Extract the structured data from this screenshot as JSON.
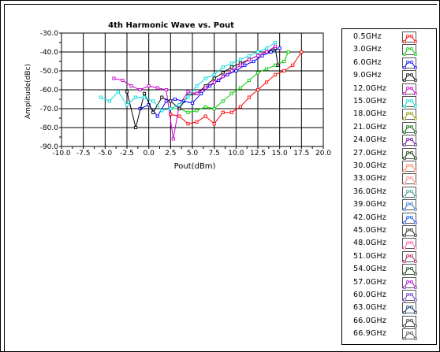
{
  "chart_data": {
    "type": "line",
    "title": "4th Harmonic Wave vs. Pout",
    "xlabel": "Pout(dBm)",
    "ylabel": "Amplitude(dBc)",
    "xlim": [
      -10,
      20
    ],
    "ylim": [
      -90,
      -30
    ],
    "xticks": [
      "-10.0",
      "-7.5",
      "-5.0",
      "-2.5",
      "0.0",
      "2.5",
      "5.0",
      "7.5",
      "10.0",
      "12.5",
      "15.0",
      "17.5",
      "20.0"
    ],
    "yticks": [
      "-30.0",
      "-40.0",
      "-50.0",
      "-60.0",
      "-70.0",
      "-80.0",
      "-90.0"
    ],
    "grid": true,
    "legend_position": "right",
    "series": [
      {
        "name": "0.5GHz",
        "color": "#ff0000",
        "x": [
          2.5,
          3.5,
          4.5,
          5.5,
          6.5,
          7.5,
          8.5,
          9.5,
          10.5,
          11.5,
          12.5,
          13.5,
          14.5,
          15.5,
          16.5,
          17.5
        ],
        "y": [
          -73,
          -74,
          -78,
          -77,
          -74,
          -78,
          -72,
          -72,
          -69,
          -64,
          -60,
          -56,
          -52,
          -50,
          -47,
          -40
        ]
      },
      {
        "name": "3.0GHz",
        "color": "#00cc00",
        "x": [
          2.5,
          3.5,
          4.5,
          5.5,
          6.5,
          7.5,
          8.5,
          9.5,
          10.5,
          11.5,
          12.5,
          13.5,
          14.5,
          15.5,
          16.0
        ],
        "y": [
          -70,
          -70,
          -72,
          -71,
          -69,
          -70,
          -66,
          -62,
          -59,
          -55,
          -51,
          -49,
          -47,
          -45,
          -40
        ]
      },
      {
        "name": "6.0GHz",
        "color": "#0000ff",
        "x": [
          -1.0,
          0.0,
          1.0,
          2.0,
          3.0,
          4.0,
          5.0,
          6.0,
          7.0,
          8.0,
          9.0,
          10.0,
          11.0,
          12.0,
          13.0,
          14.0,
          15.0
        ],
        "y": [
          -70,
          -68,
          -74,
          -66,
          -65,
          -66,
          -67,
          -62,
          -58,
          -55,
          -52,
          -50,
          -47,
          -45,
          -42,
          -40,
          -38
        ]
      },
      {
        "name": "9.0GHz",
        "color": "#000000",
        "x": [
          -2.5,
          -1.5,
          -0.5,
          0.5,
          1.5,
          2.5,
          3.5,
          4.5,
          5.5,
          6.5,
          7.5,
          8.5,
          9.5,
          10.5,
          11.5,
          12.5,
          13.5,
          14.5,
          14.8
        ],
        "y": [
          -61,
          -80,
          -62,
          -72,
          -64,
          -66,
          -70,
          -63,
          -62,
          -58,
          -54,
          -51,
          -48,
          -46,
          -44,
          -42,
          -40,
          -38,
          -47
        ]
      },
      {
        "name": "12.0GHz",
        "color": "#cc00cc",
        "x": [
          -4.0,
          -3.0,
          -2.0,
          -1.0,
          0.0,
          1.0,
          2.0,
          2.8,
          3.5,
          4.5,
          5.5,
          6.5,
          7.5,
          8.5,
          9.5,
          10.5,
          11.5,
          12.5,
          13.5,
          14.5
        ],
        "y": [
          -54,
          -55,
          -58,
          -60,
          -58,
          -59,
          -60,
          -86,
          -68,
          -61,
          -62,
          -59,
          -56,
          -53,
          -50,
          -47,
          -44,
          -42,
          -40,
          -37
        ]
      },
      {
        "name": "15.0GHz",
        "color": "#00dddd",
        "x": [
          -5.5,
          -4.5,
          -3.5,
          -2.5,
          -1.5,
          -0.5,
          0.5,
          1.5,
          2.5,
          3.5,
          4.5,
          5.5,
          6.5,
          7.5,
          8.5,
          9.5,
          10.5,
          11.5,
          12.5,
          13.5,
          14.5
        ],
        "y": [
          -64,
          -66,
          -61,
          -68,
          -64,
          -64,
          -66,
          -71,
          -70,
          -68,
          -64,
          -58,
          -54,
          -52,
          -48,
          -46,
          -44,
          -42,
          -40,
          -38,
          -35
        ]
      }
    ]
  },
  "legend": {
    "items": [
      {
        "label": "0.5GHz",
        "color": "#ff0000"
      },
      {
        "label": "3.0GHz",
        "color": "#00cc00"
      },
      {
        "label": "6.0GHz",
        "color": "#0000ff"
      },
      {
        "label": "9.0GHz",
        "color": "#000000"
      },
      {
        "label": "12.0GHz",
        "color": "#cc00cc"
      },
      {
        "label": "15.0GHz",
        "color": "#00dddd"
      },
      {
        "label": "18.0GHz",
        "color": "#999900"
      },
      {
        "label": "21.0GHz",
        "color": "#006600"
      },
      {
        "label": "24.0GHz",
        "color": "#660099"
      },
      {
        "label": "27.0GHz",
        "color": "#003300"
      },
      {
        "label": "30.0GHz",
        "color": "#ff8866"
      },
      {
        "label": "33.0GHz",
        "color": "#ff8888"
      },
      {
        "label": "36.0GHz",
        "color": "#449999"
      },
      {
        "label": "39.0GHz",
        "color": "#3377cc"
      },
      {
        "label": "42.0GHz",
        "color": "#1155ee"
      },
      {
        "label": "45.0GHz",
        "color": "#222222"
      },
      {
        "label": "48.0GHz",
        "color": "#ff66aa"
      },
      {
        "label": "51.0GHz",
        "color": "#aa2266"
      },
      {
        "label": "54.0GHz",
        "color": "#114411"
      },
      {
        "label": "57.0GHz",
        "color": "#aa00cc"
      },
      {
        "label": "60.0GHz",
        "color": "#6633cc"
      },
      {
        "label": "63.0GHz",
        "color": "#003366"
      },
      {
        "label": "66.0GHz",
        "color": "#333333"
      },
      {
        "label": "66.9GHz",
        "color": "#555555"
      }
    ]
  }
}
